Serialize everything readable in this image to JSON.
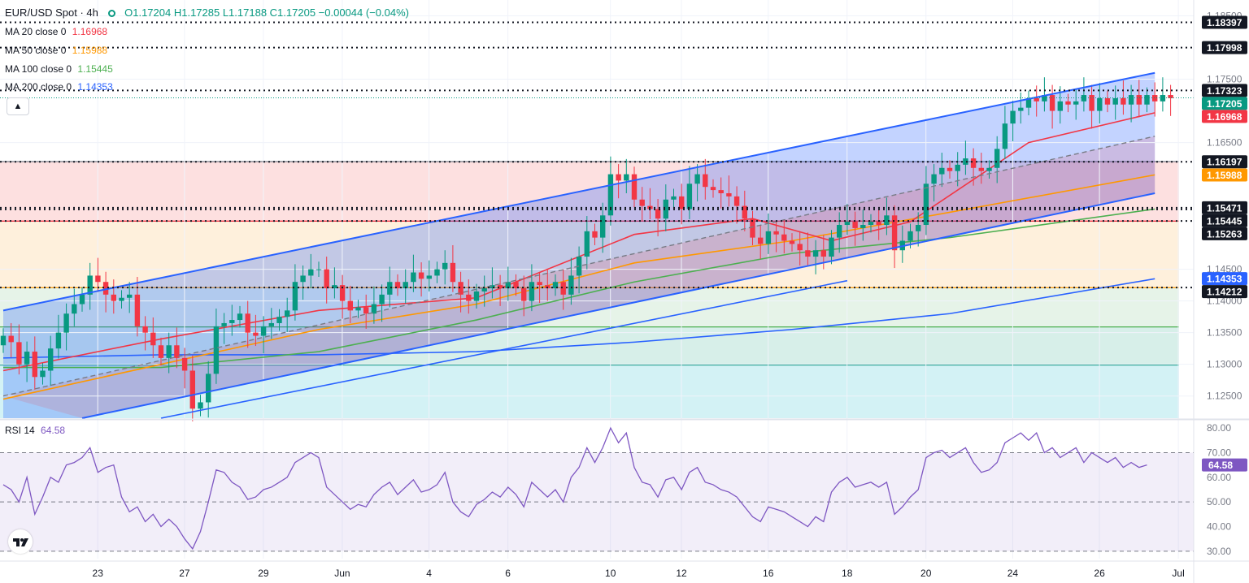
{
  "header": {
    "symbol": "EUR/USD Spot · 4h",
    "ohlc": "O1.17204 H1.17285 L1.17188 C1.17205 −0.00044 (−0.04%)"
  },
  "legend": [
    {
      "label": "MA 20 close 0",
      "value": "1.16968",
      "color": "#f23645"
    },
    {
      "label": "MA 50 close 0",
      "value": "1.15988",
      "color": "#ff9800"
    },
    {
      "label": "MA 100 close 0",
      "value": "1.15445",
      "color": "#4caf50"
    },
    {
      "label": "MA 200 close 0",
      "value": "1.14353",
      "color": "#2962ff"
    }
  ],
  "rsi_label": {
    "label": "RSI 14",
    "value": "64.58"
  },
  "colors": {
    "up": "#089981",
    "down": "#f23645",
    "ma20": "#f23645",
    "ma50": "#ff9800",
    "ma100": "#4caf50",
    "ma200": "#2962ff",
    "channel": "#2962ff",
    "rsi": "#7e57c2"
  },
  "chart_data": [
    {
      "type": "candlestick",
      "title": "EUR/USD Spot · 4h",
      "x_ticks": [
        "23",
        "27",
        "29",
        "Jun",
        "4",
        "6",
        "10",
        "12",
        "16",
        "18",
        "20",
        "24",
        "26",
        "Jul"
      ],
      "y_ticks": [
        1.185,
        1.175,
        1.165,
        1.145,
        1.14,
        1.135,
        1.13,
        1.125
      ],
      "ylim": [
        1.1215,
        1.1875
      ],
      "price_labels": [
        {
          "value": "1.18397",
          "kind": "level"
        },
        {
          "value": "1.17998",
          "kind": "level"
        },
        {
          "value": "1.17323",
          "kind": "level"
        },
        {
          "value": "1.17205",
          "kind": "last"
        },
        {
          "value": "1.16968",
          "kind": "ma20"
        },
        {
          "value": "1.16197",
          "kind": "level"
        },
        {
          "value": "1.15988",
          "kind": "ma50"
        },
        {
          "value": "1.15471",
          "kind": "level"
        },
        {
          "value": "1.15445",
          "kind": "level"
        },
        {
          "value": "1.15263",
          "kind": "level"
        },
        {
          "value": "1.14353",
          "kind": "ma200"
        },
        {
          "value": "1.14212",
          "kind": "level"
        }
      ],
      "fib_levels": [
        1.162,
        1.1526,
        1.1421,
        1.1359,
        1.1299
      ],
      "ohlc_first": {
        "o": 1.133,
        "c": 1.1345,
        "h": 1.137,
        "l": 1.131
      },
      "closes": [
        1.1345,
        1.1335,
        1.13,
        1.132,
        1.128,
        1.129,
        1.1325,
        1.135,
        1.138,
        1.1395,
        1.141,
        1.144,
        1.143,
        1.141,
        1.14,
        1.1405,
        1.141,
        1.136,
        1.135,
        1.133,
        1.131,
        1.133,
        1.131,
        1.129,
        1.123,
        1.124,
        1.1285,
        1.136,
        1.1365,
        1.137,
        1.138,
        1.135,
        1.1345,
        1.136,
        1.1365,
        1.1375,
        1.1385,
        1.143,
        1.144,
        1.145,
        1.145,
        1.142,
        1.1425,
        1.14,
        1.1385,
        1.139,
        1.138,
        1.1395,
        1.141,
        1.143,
        1.142,
        1.143,
        1.1445,
        1.1435,
        1.144,
        1.145,
        1.146,
        1.143,
        1.141,
        1.14,
        1.1415,
        1.142,
        1.1425,
        1.142,
        1.143,
        1.142,
        1.14,
        1.143,
        1.1425,
        1.142,
        1.143,
        1.141,
        1.144,
        1.147,
        1.151,
        1.15,
        1.1535,
        1.16,
        1.159,
        1.16,
        1.156,
        1.155,
        1.1545,
        1.153,
        1.156,
        1.1565,
        1.1545,
        1.1585,
        1.16,
        1.158,
        1.1575,
        1.157,
        1.1565,
        1.155,
        1.153,
        1.15,
        1.149,
        1.151,
        1.1505,
        1.1495,
        1.149,
        1.148,
        1.147,
        1.148,
        1.147,
        1.15,
        1.152,
        1.1525,
        1.1515,
        1.152,
        1.1525,
        1.152,
        1.1535,
        1.148,
        1.1495,
        1.151,
        1.152,
        1.1585,
        1.16,
        1.161,
        1.1605,
        1.1615,
        1.1625,
        1.161,
        1.1605,
        1.161,
        1.164,
        1.168,
        1.17,
        1.1705,
        1.172,
        1.1715,
        1.1725,
        1.17,
        1.1715,
        1.171,
        1.1715,
        1.1725,
        1.17,
        1.172,
        1.171,
        1.172,
        1.171,
        1.1725,
        1.171,
        1.1725,
        1.1715,
        1.1725,
        1.172
      ],
      "ma20": [
        [
          0,
          1.129
        ],
        [
          20,
          1.134
        ],
        [
          40,
          1.1385
        ],
        [
          60,
          1.1405
        ],
        [
          80,
          1.1505
        ],
        [
          95,
          1.153
        ],
        [
          105,
          1.1495
        ],
        [
          115,
          1.1525
        ],
        [
          130,
          1.165
        ],
        [
          146,
          1.1697
        ]
      ],
      "ma50": [
        [
          0,
          1.1245
        ],
        [
          20,
          1.13
        ],
        [
          40,
          1.1355
        ],
        [
          60,
          1.1395
        ],
        [
          80,
          1.146
        ],
        [
          100,
          1.1495
        ],
        [
          120,
          1.154
        ],
        [
          146,
          1.1599
        ]
      ],
      "ma100": [
        [
          0,
          1.1295
        ],
        [
          20,
          1.1295
        ],
        [
          40,
          1.132
        ],
        [
          60,
          1.137
        ],
        [
          80,
          1.143
        ],
        [
          100,
          1.1475
        ],
        [
          120,
          1.15
        ],
        [
          146,
          1.1545
        ]
      ],
      "ma200": [
        [
          0,
          1.131
        ],
        [
          20,
          1.1315
        ],
        [
          40,
          1.1315
        ],
        [
          60,
          1.132
        ],
        [
          80,
          1.1335
        ],
        [
          100,
          1.1355
        ],
        [
          120,
          1.138
        ],
        [
          146,
          1.1435
        ]
      ],
      "channel": {
        "upper": [
          [
            0,
            1.1385
          ],
          [
            146,
            1.176
          ]
        ],
        "mid": [
          [
            0,
            1.125
          ],
          [
            146,
            1.166
          ]
        ],
        "lower": [
          [
            10,
            1.1215
          ],
          [
            146,
            1.157
          ]
        ],
        "parallel": [
          [
            20,
            1.1215
          ],
          [
            107,
            1.1432
          ]
        ]
      }
    },
    {
      "type": "line",
      "title": "RSI 14",
      "series": [
        {
          "name": "RSI 14",
          "values": [
            57,
            55,
            50,
            60,
            45,
            52,
            60,
            58,
            65,
            66,
            68,
            72,
            62,
            64,
            65,
            52,
            46,
            48,
            42,
            45,
            40,
            43,
            40,
            35,
            31,
            38,
            50,
            63,
            62,
            58,
            56,
            51,
            52,
            55,
            56,
            58,
            60,
            66,
            68,
            70,
            68,
            56,
            53,
            50,
            47,
            49,
            48,
            53,
            56,
            58,
            53,
            56,
            59,
            54,
            55,
            57,
            62,
            50,
            46,
            44,
            49,
            51,
            54,
            52,
            56,
            53,
            48,
            58,
            55,
            52,
            55,
            50,
            60,
            64,
            72,
            66,
            72,
            80,
            74,
            78,
            64,
            58,
            57,
            52,
            59,
            60,
            55,
            62,
            64,
            58,
            57,
            55,
            54,
            52,
            48,
            44,
            42,
            48,
            47,
            46,
            44,
            42,
            40,
            44,
            42,
            54,
            58,
            60,
            56,
            57,
            58,
            56,
            58,
            45,
            48,
            52,
            55,
            68,
            70,
            71,
            68,
            70,
            72,
            66,
            62,
            63,
            66,
            74,
            76,
            78,
            75,
            78,
            70,
            72,
            68,
            70,
            72,
            66,
            70,
            68,
            66,
            68,
            64,
            66,
            64,
            65
          ]
        }
      ],
      "ylim": [
        27,
        83
      ],
      "y_ticks": [
        80,
        70,
        60,
        50,
        40,
        30
      ],
      "bands": [
        70,
        50,
        30
      ]
    }
  ]
}
